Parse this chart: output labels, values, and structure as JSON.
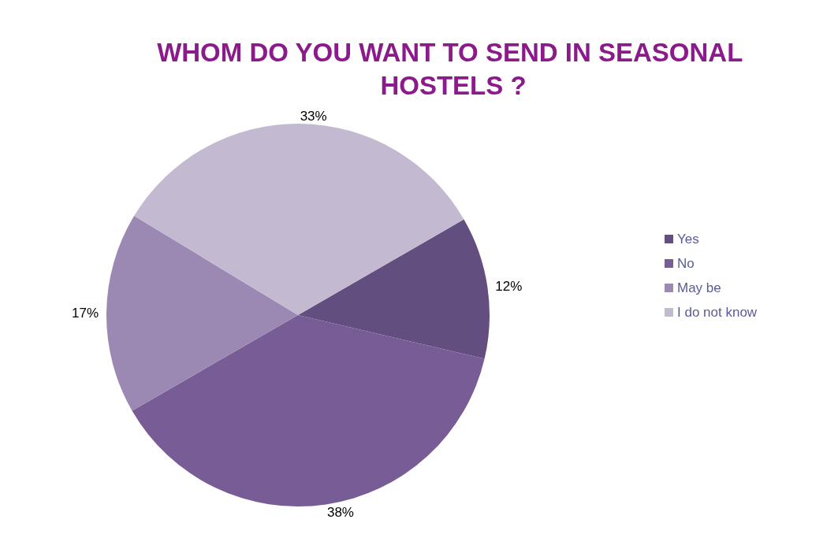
{
  "chart_data": {
    "type": "pie",
    "title": "WHOM DO YOU WANT TO SEND IN SEASONAL HOSTELS ?",
    "categories": [
      "Yes",
      "No",
      "May be",
      "I do not know"
    ],
    "values": [
      12,
      38,
      17,
      33
    ],
    "value_labels": [
      "12%",
      "38%",
      "17%",
      "33%"
    ],
    "colors": [
      "#634e80",
      "#775c96",
      "#9b88b3",
      "#c3b9d1"
    ],
    "legend": "right"
  }
}
